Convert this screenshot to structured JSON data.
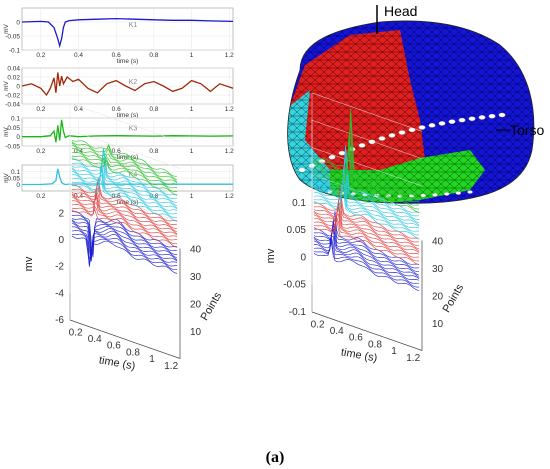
{
  "caption": "(a)",
  "torso_model": {
    "labels": [
      "Head",
      "Torso"
    ],
    "colors": {
      "blue": "#1515d8",
      "red": "#e02020",
      "green": "#22d622",
      "cyan": "#37d4de"
    }
  },
  "chart_data": [
    {
      "type": "line",
      "panel": "K1",
      "ylabel": "mV",
      "xlabel": "time (s)",
      "xlim": [
        0.1,
        1.22
      ],
      "ylim": [
        -0.1,
        0.05
      ],
      "yticks": [
        "0",
        "-0.05",
        "-0.1"
      ],
      "xticks": [
        "0.2",
        "0.4",
        "0.6",
        "0.8",
        "1",
        "1.2"
      ],
      "color": "#1a1acc",
      "x": [
        0.1,
        0.2,
        0.24,
        0.27,
        0.29,
        0.3,
        0.31,
        0.32,
        0.33,
        0.35,
        0.4,
        0.5,
        0.6,
        0.7,
        0.8,
        0.9,
        1.0,
        1.1,
        1.22
      ],
      "y": [
        0.0,
        0.002,
        0.0,
        -0.02,
        -0.06,
        -0.085,
        -0.06,
        -0.02,
        0.0,
        0.005,
        0.008,
        0.01,
        0.012,
        0.01,
        0.008,
        0.006,
        0.006,
        0.004,
        0.002
      ]
    },
    {
      "type": "line",
      "panel": "K2",
      "ylabel": "mV",
      "xlabel": "time (s)",
      "xlim": [
        0.1,
        1.22
      ],
      "ylim": [
        -0.04,
        0.04
      ],
      "yticks": [
        "0.04",
        "0.02",
        "0",
        "-0.02",
        "-0.04"
      ],
      "xticks": [
        "0.2",
        "0.4",
        "0.6",
        "0.8",
        "1",
        "1.2"
      ],
      "color": "#a02808",
      "x": [
        0.1,
        0.15,
        0.2,
        0.23,
        0.25,
        0.27,
        0.28,
        0.29,
        0.3,
        0.31,
        0.32,
        0.34,
        0.37,
        0.4,
        0.45,
        0.5,
        0.55,
        0.6,
        0.65,
        0.7,
        0.75,
        0.8,
        0.85,
        0.9,
        0.95,
        1.0,
        1.05,
        1.1,
        1.15,
        1.22
      ],
      "y": [
        0.0,
        0.005,
        -0.005,
        -0.02,
        -0.005,
        0.018,
        -0.015,
        0.03,
        0.0,
        0.022,
        0.005,
        0.02,
        0.01,
        0.015,
        -0.005,
        -0.015,
        0.005,
        0.012,
        0.0,
        -0.01,
        0.005,
        0.01,
        0.0,
        -0.012,
        -0.005,
        0.012,
        0.005,
        -0.012,
        0.005,
        -0.005
      ]
    },
    {
      "type": "line",
      "panel": "K3",
      "ylabel": "mV",
      "xlabel": "time (s)",
      "xlim": [
        0.1,
        1.22
      ],
      "ylim": [
        -0.05,
        0.1
      ],
      "yticks": [
        "0.1",
        "0.05",
        "0",
        "-0.05"
      ],
      "xticks": [
        "0.2",
        "0.4",
        "0.6",
        "0.8",
        "1",
        "1.2"
      ],
      "color": "#18b818",
      "x": [
        0.1,
        0.2,
        0.25,
        0.27,
        0.28,
        0.29,
        0.3,
        0.31,
        0.32,
        0.33,
        0.35,
        0.4,
        0.5,
        0.6,
        0.7,
        0.8,
        0.9,
        1.0,
        1.1,
        1.22
      ],
      "y": [
        0.0,
        0.0,
        0.005,
        0.03,
        -0.03,
        0.06,
        -0.02,
        0.09,
        0.03,
        -0.005,
        0.005,
        0.0,
        0.004,
        0.005,
        0.004,
        0.003,
        0.005,
        0.004,
        0.003,
        0.004
      ]
    },
    {
      "type": "line",
      "panel": "K4",
      "ylabel": "mV",
      "xlabel": "time (s)",
      "xlim": [
        0.1,
        1.22
      ],
      "ylim": [
        -0.05,
        0.15
      ],
      "yticks": [
        "0.1",
        "0.05",
        "0"
      ],
      "xticks": [
        "0.2",
        "0.4",
        "0.6",
        "0.8",
        "1",
        "1.2"
      ],
      "color": "#30c0d8",
      "x": [
        0.1,
        0.2,
        0.26,
        0.28,
        0.29,
        0.3,
        0.31,
        0.32,
        0.33,
        0.35,
        0.4,
        0.5,
        0.6,
        0.7,
        0.8,
        0.9,
        1.0,
        1.1,
        1.22
      ],
      "y": [
        0.0,
        0.0,
        0.005,
        0.03,
        0.12,
        0.06,
        0.015,
        0.005,
        0.0,
        0.003,
        0.004,
        0.004,
        0.003,
        0.003,
        0.003,
        0.002,
        0.002,
        0.002,
        0.002
      ]
    },
    {
      "type": "3d-line-waterfall",
      "panel": "left-3d",
      "zlabel": "mv",
      "xlabel": "time (s)",
      "ylabel": "Points",
      "zticks": [
        "2",
        "0",
        "-2",
        "-4",
        "-6"
      ],
      "xticks": [
        "0.2",
        "0.4",
        "0.6",
        "0.8",
        "1",
        "1.2"
      ],
      "yticks": [
        "10",
        "20",
        "30",
        "40"
      ],
      "series_groups": [
        {
          "color": "#2020d0",
          "count": 10,
          "peak_mv": -3.2
        },
        {
          "color": "#e04040",
          "count": 10,
          "peak_mv": 1.2
        },
        {
          "color": "#30c8e0",
          "count": 10,
          "peak_mv": 2.0
        },
        {
          "color": "#30c030",
          "count": 8,
          "peak_mv": 0.6
        }
      ]
    },
    {
      "type": "3d-line-waterfall",
      "panel": "right-3d",
      "zlabel": "mv",
      "xlabel": "time (s)",
      "ylabel": "Points",
      "zticks": [
        "0.1",
        "0.05",
        "0",
        "-0.05",
        "-0.1"
      ],
      "xticks": [
        "0.2",
        "0.4",
        "0.6",
        "0.8",
        "1",
        "1.2"
      ],
      "yticks": [
        "10",
        "20",
        "30",
        "40"
      ],
      "series_groups": [
        {
          "color": "#2020d0",
          "count": 10,
          "peak_mv": 0.05
        },
        {
          "color": "#e04040",
          "count": 10,
          "peak_mv": 0.05
        },
        {
          "color": "#30c8e0",
          "count": 10,
          "peak_mv": 0.09
        },
        {
          "color": "#30c030",
          "count": 8,
          "peak_mv": 0.12
        }
      ]
    }
  ]
}
